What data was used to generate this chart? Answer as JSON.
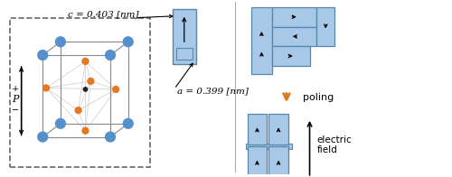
{
  "bg_color": "#ffffff",
  "box_fill": "#a8c8e8",
  "box_edge": "#5588aa",
  "orange_arrow_color": "#e07820",
  "blue_atom_color": "#5590cc",
  "orange_atom_color": "#e87820",
  "dark_atom_color": "#222222",
  "dashed_box_color": "#666666",
  "label_c": "c = 0.403 [nm]",
  "label_a": "a = 0.399 [nm]",
  "label_poling": "poling",
  "label_electric": "electric\nfield"
}
